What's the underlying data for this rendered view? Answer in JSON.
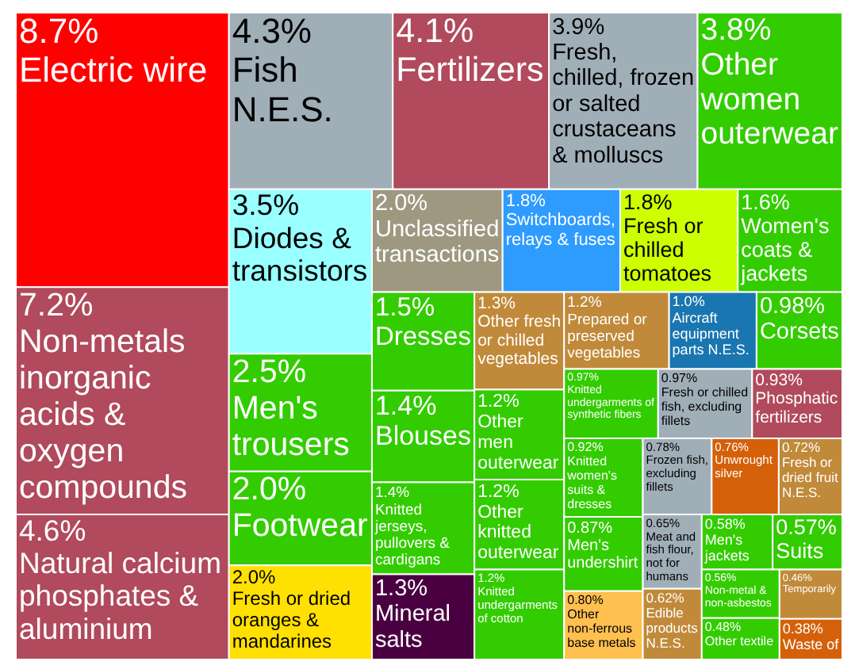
{
  "chart_data": {
    "type": "other",
    "categories": [
      "Electric wire",
      "Non-metals inorganic acids & oxygen compounds",
      "Natural calcium phosphates & aluminium",
      "Fish N.E.S.",
      "Fertilizers",
      "Fresh, chilled, frozen or salted crustaceans & molluscs",
      "Other women outerwear",
      "Diodes & transistors",
      "Men's trousers",
      "Footwear",
      "Fresh or dried oranges & mandarines",
      "Unclassified transactions",
      "Switchboards, relays & fuses",
      "Fresh or chilled tomatoes",
      "Women's coats & jackets",
      "Dresses",
      "Blouses",
      "Knitted jerseys, pullovers & cardigans",
      "Mineral salts",
      "Other fresh or chilled vegetables",
      "Other men outerwear",
      "Other knitted outerwear",
      "Knitted undergarments of cotton",
      "Prepared or preserved vegetables",
      "Aircraft equipment parts N.E.S.",
      "Corsets",
      "Knitted undergarments of synthetic fibers",
      "Fresh or chilled fish, excluding fillets",
      "Phosphatic fertilizers",
      "Knitted women's suits & dresses",
      "Men's undershirt",
      "Other non-ferrous base metals",
      "Frozen fish, excluding fillets",
      "Unwrought silver",
      "Fresh or dried fruit N.E.S.",
      "Meat and fish flour, not for humans",
      "Edible products N.E.S.",
      "Men's jackets",
      "Suits",
      "Non-metal & non-asbestos",
      "Other textile",
      "Temporarily",
      "Waste of"
    ],
    "values": [
      8.7,
      7.2,
      4.6,
      4.3,
      4.1,
      3.9,
      3.8,
      3.5,
      2.5,
      2.0,
      2.0,
      2.0,
      1.8,
      1.8,
      1.6,
      1.5,
      1.4,
      1.4,
      1.3,
      1.3,
      1.2,
      1.2,
      1.2,
      1.2,
      1.0,
      0.98,
      0.97,
      0.97,
      0.93,
      0.92,
      0.87,
      0.8,
      0.78,
      0.76,
      0.72,
      0.65,
      0.62,
      0.58,
      0.57,
      0.56,
      0.48,
      0.46,
      0.38
    ],
    "value_labels": [
      "8.7%",
      "7.2%",
      "4.6%",
      "4.3%",
      "4.1%",
      "3.9%",
      "3.8%",
      "3.5%",
      "2.5%",
      "2.0%",
      "2.0%",
      "2.0%",
      "1.8%",
      "1.8%",
      "1.6%",
      "1.5%",
      "1.4%",
      "1.4%",
      "1.3%",
      "1.3%",
      "1.2%",
      "1.2%",
      "1.2%",
      "1.2%",
      "1.0%",
      "0.98%",
      "0.97%",
      "0.97%",
      "0.93%",
      "0.92%",
      "0.87%",
      "0.80%",
      "0.78%",
      "0.76%",
      "0.72%",
      "0.65%",
      "0.62%",
      "0.58%",
      "0.57%",
      "0.56%",
      "0.48%",
      "0.46%",
      "0.38%"
    ],
    "colors": [
      "#ff0000",
      "#b04a5c",
      "#b04a5c",
      "#a0aeb8",
      "#b04a5c",
      "#a0aeb8",
      "#33cc00",
      "#99ffff",
      "#33cc00",
      "#33cc00",
      "#ffe000",
      "#9e9880",
      "#2e9bff",
      "#ccff00",
      "#33cc00",
      "#33cc00",
      "#33cc00",
      "#33cc00",
      "#4a0040",
      "#c08a3a",
      "#33cc00",
      "#33cc00",
      "#33cc00",
      "#c08a3a",
      "#1976b0",
      "#33cc00",
      "#33cc00",
      "#a0aeb8",
      "#b04a5c",
      "#33cc00",
      "#33cc00",
      "#ffc050",
      "#a0aeb8",
      "#d4600a",
      "#c08a3a",
      "#a0aeb8",
      "#c08a3a",
      "#33cc00",
      "#33cc00",
      "#33cc00",
      "#33cc00",
      "#c08a3a",
      "#d4600a"
    ]
  }
}
